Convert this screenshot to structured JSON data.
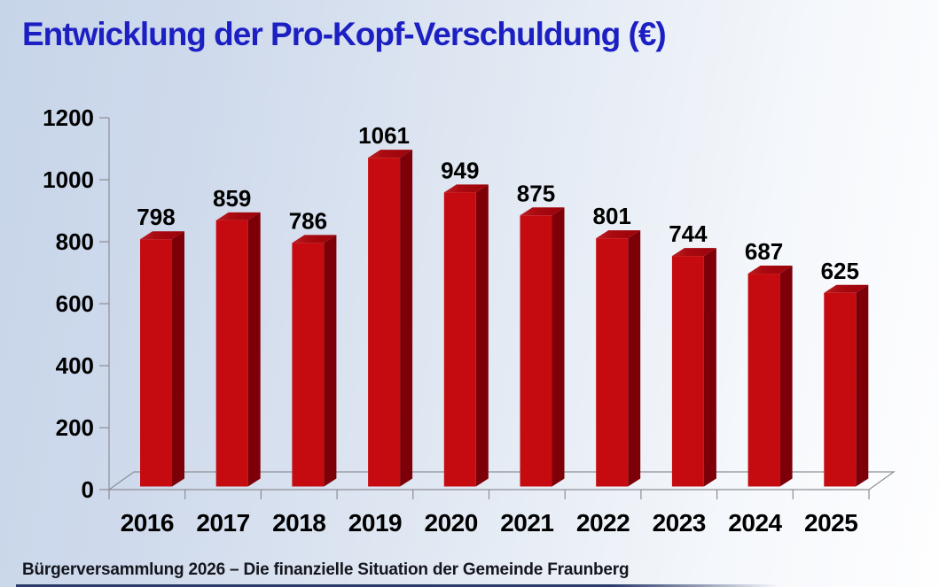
{
  "title": "Entwicklung der Pro-Kopf-Verschuldung (€)",
  "footer": "Bürgerversammlung 2026 – Die finanzielle Situation der Gemeinde Fraunberg",
  "colors": {
    "title_color": "#1C20C3",
    "footer_color": "#14151D",
    "bottom_rule_color": "#2A3A6A",
    "axis_color": "#8E8E96",
    "background_left": "#C7D5E9",
    "background_right": "#FEFEFF"
  },
  "chart_data": {
    "type": "bar",
    "style": "3d-column",
    "title": "Entwicklung der Pro-Kopf-Verschuldung (€)",
    "categories": [
      "2016",
      "2017",
      "2018",
      "2019",
      "2020",
      "2021",
      "2022",
      "2023",
      "2024",
      "2025"
    ],
    "values": [
      798,
      859,
      786,
      1061,
      949,
      875,
      801,
      744,
      687,
      625
    ],
    "xlabel": "",
    "ylabel": "",
    "ylim": [
      0,
      1200
    ],
    "yticks": [
      0,
      200,
      400,
      600,
      800,
      1000,
      1200
    ],
    "grid": false,
    "legend": "none",
    "data_labels": true,
    "bar_color_front": "#C50B0F",
    "bar_color_top": "#A2040A",
    "bar_color_top_highlight": "#BB2025",
    "bar_color_side": "#7D0009"
  }
}
